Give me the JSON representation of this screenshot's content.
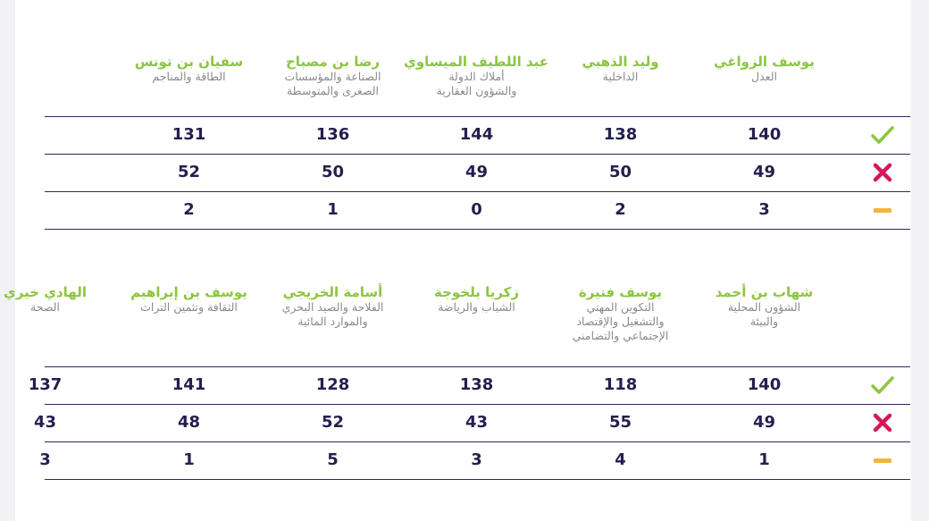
{
  "colors": {
    "name_green": "#8cc63f",
    "portfolio_gray": "#8a8a8a",
    "number_navy": "#231f4e",
    "for_green": "#8cc63f",
    "against_red": "#d6185a",
    "abstain_orange": "#f4b43a"
  },
  "icons": {
    "for": "check-icon",
    "against": "cross-icon",
    "abstain": "dash-icon"
  },
  "chart_data": {
    "type": "table",
    "rows": [
      "for",
      "against",
      "abstain"
    ],
    "sections": [
      {
        "ministers": [
          {
            "name": "يوسف الزواغي",
            "portfolio": [
              "العدل"
            ],
            "for": 140,
            "against": 49,
            "abstain": 3
          },
          {
            "name": "وليد الذهبي",
            "portfolio": [
              "الداخلية"
            ],
            "for": 138,
            "against": 50,
            "abstain": 2
          },
          {
            "name": "عبد اللطيف الميساوي",
            "portfolio": [
              "أملاك الدولة",
              "والشؤون العقارية"
            ],
            "for": 144,
            "against": 49,
            "abstain": 0
          },
          {
            "name": "رضا بن مصباح",
            "portfolio": [
              "الصناعة والمؤسسات",
              "الصغرى والمتوسطة"
            ],
            "for": 136,
            "against": 50,
            "abstain": 1
          },
          {
            "name": "سفيان بن تونس",
            "portfolio": [
              "الطاقة والمناجم"
            ],
            "for": 131,
            "against": 52,
            "abstain": 2
          }
        ]
      },
      {
        "ministers": [
          {
            "name": "شهاب بن أحمد",
            "portfolio": [
              "الشؤون المحلية",
              "والبيئة"
            ],
            "for": 140,
            "against": 49,
            "abstain": 1
          },
          {
            "name": "يوسف فنيرة",
            "portfolio": [
              "التكوين المهني",
              "والتشغيل والإقتصاد",
              "الإجتماعي والتضامني"
            ],
            "for": 118,
            "against": 55,
            "abstain": 4
          },
          {
            "name": "زكريا بلخوجة",
            "portfolio": [
              "الشباب والرياضة"
            ],
            "for": 138,
            "against": 43,
            "abstain": 3
          },
          {
            "name": "أسامة الخريجي",
            "portfolio": [
              "الفلاحة والصيد البحري",
              "والموارد المائية"
            ],
            "for": 128,
            "against": 52,
            "abstain": 5
          },
          {
            "name": "يوسف بن إبراهيم",
            "portfolio": [
              "الثقافة وتثمين التراث"
            ],
            "for": 141,
            "against": 48,
            "abstain": 1
          },
          {
            "name": "الهادي خيري",
            "portfolio": [
              "الصحة"
            ],
            "for": 137,
            "against": 43,
            "abstain": 3
          }
        ]
      }
    ]
  }
}
